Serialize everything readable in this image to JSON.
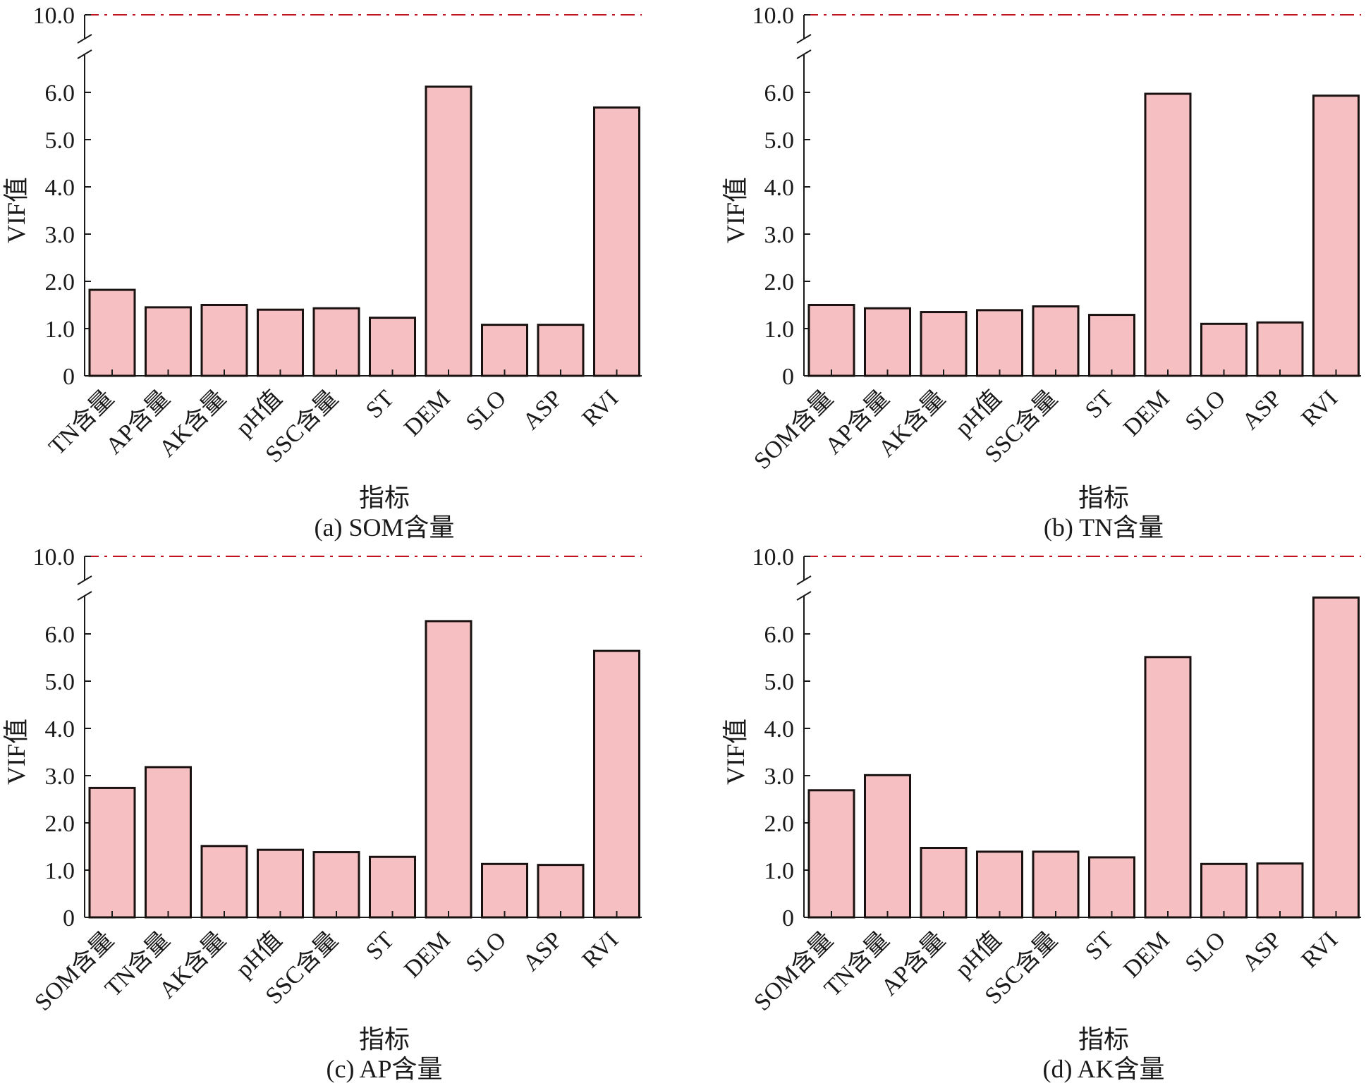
{
  "colors": {
    "bar_fill": "#f6bfc1",
    "bar_stroke": "#1a1111",
    "threshold_line": "#c0121f",
    "axis": "#1a1a1a"
  },
  "chart_data": [
    {
      "type": "bar",
      "caption": "(a) SOM含量",
      "xlabel": "指标",
      "ylabel": "VIF值",
      "categories": [
        "TN含量",
        "AP含量",
        "AK含量",
        "pH值",
        "SSC含量",
        "ST",
        "DEM",
        "SLO",
        "ASP",
        "RVI"
      ],
      "values": [
        1.82,
        1.45,
        1.5,
        1.4,
        1.43,
        1.23,
        6.12,
        1.08,
        1.08,
        5.68
      ],
      "yticks": [
        "0",
        "1.0",
        "2.0",
        "3.0",
        "4.0",
        "5.0",
        "6.0",
        "10.0"
      ],
      "ylim": [
        0,
        10
      ],
      "axis_break": [
        7,
        10
      ],
      "threshold": 10.0,
      "grid": false
    },
    {
      "type": "bar",
      "caption": "(b) TN含量",
      "xlabel": "指标",
      "ylabel": "VIF值",
      "categories": [
        "SOM含量",
        "AP含量",
        "AK含量",
        "pH值",
        "SSC含量",
        "ST",
        "DEM",
        "SLO",
        "ASP",
        "RVI"
      ],
      "values": [
        1.5,
        1.43,
        1.35,
        1.39,
        1.47,
        1.29,
        5.97,
        1.1,
        1.13,
        5.93
      ],
      "yticks": [
        "0",
        "1.0",
        "2.0",
        "3.0",
        "4.0",
        "5.0",
        "6.0",
        "10.0"
      ],
      "ylim": [
        0,
        10
      ],
      "axis_break": [
        7,
        10
      ],
      "threshold": 10.0,
      "grid": false
    },
    {
      "type": "bar",
      "caption": "(c) AP含量",
      "xlabel": "指标",
      "ylabel": "VIF值",
      "categories": [
        "SOM含量",
        "TN含量",
        "AK含量",
        "pH值",
        "SSC含量",
        "ST",
        "DEM",
        "SLO",
        "ASP",
        "RVI"
      ],
      "values": [
        2.74,
        3.18,
        1.51,
        1.43,
        1.38,
        1.28,
        6.27,
        1.13,
        1.11,
        5.64
      ],
      "yticks": [
        "0",
        "1.0",
        "2.0",
        "3.0",
        "4.0",
        "5.0",
        "6.0",
        "10.0"
      ],
      "ylim": [
        0,
        10
      ],
      "axis_break": [
        7,
        10
      ],
      "threshold": 10.0,
      "grid": false
    },
    {
      "type": "bar",
      "caption": "(d) AK含量",
      "xlabel": "指标",
      "ylabel": "VIF值",
      "categories": [
        "SOM含量",
        "TN含量",
        "AP含量",
        "pH值",
        "SSC含量",
        "ST",
        "DEM",
        "SLO",
        "ASP",
        "RVI"
      ],
      "values": [
        2.69,
        3.01,
        1.47,
        1.39,
        1.39,
        1.27,
        5.51,
        1.13,
        1.14,
        6.77
      ],
      "yticks": [
        "0",
        "1.0",
        "2.0",
        "3.0",
        "4.0",
        "5.0",
        "6.0",
        "10.0"
      ],
      "ylim": [
        0,
        10
      ],
      "axis_break": [
        7,
        10
      ],
      "threshold": 10.0,
      "grid": false
    }
  ]
}
